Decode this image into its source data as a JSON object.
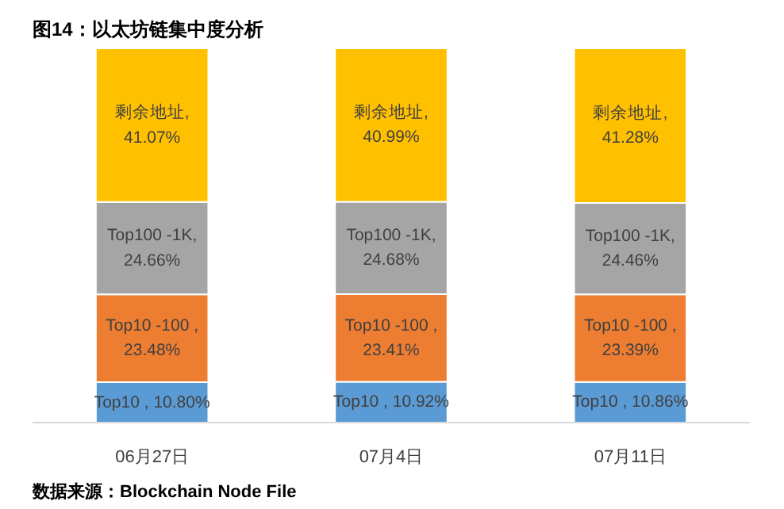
{
  "chart_data": {
    "type": "bar",
    "stacked": true,
    "title": "图14：以太坊链集中度分析",
    "categories": [
      "06月27日",
      "07月4日",
      "07月11日"
    ],
    "series": [
      {
        "color": "#5b9bd5",
        "values": [
          10.8,
          10.92,
          10.86
        ],
        "value_labels": [
          "Top10 , 10.80%",
          "Top10 , 10.92%",
          "Top10 , 10.86%"
        ]
      },
      {
        "color": "#ed7d31",
        "values": [
          23.48,
          23.41,
          23.39
        ],
        "value_labels": [
          "Top10 -100 , 23.48%",
          "Top10 -100 , 23.41%",
          "Top10 -100 , 23.39%"
        ]
      },
      {
        "color": "#a5a5a5",
        "values": [
          24.66,
          24.68,
          24.46
        ],
        "value_labels": [
          "Top100 -1K, 24.66%",
          "Top100 -1K, 24.68%",
          "Top100 -1K, 24.46%"
        ]
      },
      {
        "color": "#ffc000",
        "values": [
          41.07,
          40.99,
          41.28
        ],
        "value_labels": [
          "剩余地址, 41.07%",
          "剩余地址, 40.99%",
          "剩余地址, 41.28%"
        ]
      }
    ],
    "grid": false,
    "annotations": [
      "数据来源：Blockchain Node File"
    ]
  }
}
